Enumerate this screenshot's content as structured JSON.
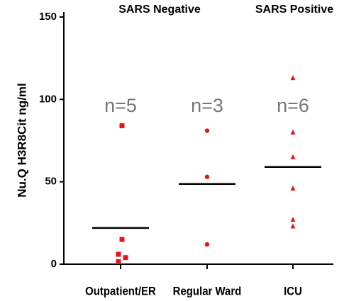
{
  "chart_data": {
    "type": "dot",
    "headers": [
      "SARS Negative",
      "SARS Positive"
    ],
    "ylabel": "Nu.Q H3R8Cit ng/ml",
    "categories": [
      "Outpatient/ER",
      "Regular Ward",
      "ICU"
    ],
    "values": [
      [
        84,
        15,
        6,
        4,
        1.5
      ],
      [
        81,
        53,
        12
      ],
      [
        113,
        80,
        65,
        46,
        27,
        23
      ]
    ],
    "means": [
      22,
      48.7,
      59
    ],
    "markers": [
      "square",
      "circle",
      "triangle"
    ],
    "annotations": [
      "n=5",
      "n=3",
      "n=6"
    ],
    "color": "#e8141b",
    "mean_color": "#000000",
    "ylim": [
      0,
      150
    ],
    "yticks": [
      0,
      50,
      100,
      150
    ]
  }
}
